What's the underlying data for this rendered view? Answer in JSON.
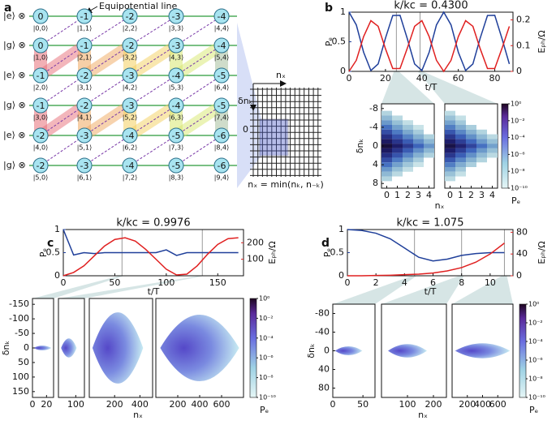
{
  "panel_labels": [
    "a",
    "b",
    "c",
    "d"
  ],
  "diagram": {
    "annotation": "Equipotential line",
    "row_labels": [
      "|e⟩ ⊗",
      "|g⟩ ⊗",
      "|e⟩ ⊗",
      "|g⟩ ⊗",
      "|e⟩ ⊗",
      "|g⟩ ⊗"
    ],
    "nodes": [
      [
        "0",
        "-1",
        "-2",
        "-3",
        "-4"
      ],
      [
        "0",
        "-1",
        "-2",
        "-3",
        "-4"
      ],
      [
        "-1",
        "-2",
        "-3",
        "-4",
        "-5"
      ],
      [
        "-1",
        "-2",
        "-3",
        "-4",
        "-5"
      ],
      [
        "-2",
        "-3",
        "-4",
        "-5",
        "-6"
      ],
      [
        "-2",
        "-3",
        "-4",
        "-5",
        "-6"
      ]
    ],
    "states": [
      [
        "|0,0⟩",
        "|1,1⟩",
        "|2,2⟩",
        "|3,3⟩",
        "|4,4⟩"
      ],
      [
        "|1,0⟩",
        "|2,1⟩",
        "|3,2⟩",
        "|4,3⟩",
        "|5,4⟩"
      ],
      [
        "|2,0⟩",
        "|3,1⟩",
        "|4,2⟩",
        "|5,3⟩",
        "|6,4⟩"
      ],
      [
        "|3,0⟩",
        "|4,1⟩",
        "|5,2⟩",
        "|6,3⟩",
        "|7,4⟩"
      ],
      [
        "|4,0⟩",
        "|5,1⟩",
        "|6,2⟩",
        "|7,3⟩",
        "|8,4⟩"
      ],
      [
        "|5,0⟩",
        "|6,1⟩",
        "|7,2⟩",
        "|8,3⟩",
        "|9,4⟩"
      ]
    ],
    "lattice": {
      "x_label": "nₓ",
      "y_label": "δnₖ",
      "origin": "0",
      "formula": "nₓ = min(nₖ, n₋ₖ)"
    }
  },
  "chart_data": [
    {
      "type": "line",
      "title": "k/kc = 0.4300",
      "xlabel": "t/T",
      "ylabel": "Pₑ",
      "y2label": "Eₚₕ/Ω",
      "x": [
        0,
        4,
        8,
        12,
        16,
        20,
        24,
        28,
        32,
        36,
        40,
        44,
        48,
        52,
        56,
        60,
        64,
        68,
        72,
        76,
        80,
        84,
        88
      ],
      "xlim": [
        0,
        90
      ],
      "xticks": [
        0,
        20,
        40,
        60,
        80
      ],
      "ylim": [
        0,
        1
      ],
      "yticks": [
        0,
        0.5,
        1
      ],
      "y2lim": [
        0,
        0.23
      ],
      "y2ticks": [
        0,
        0.1,
        0.2
      ],
      "series": [
        {
          "color": "#1f3f9a",
          "values": [
            1,
            0.785,
            0.324,
            0.014,
            0.126,
            0.561,
            0.943,
            0.947,
            0.551,
            0.125,
            0.014,
            0.323,
            0.785,
            1,
            0.785,
            0.324,
            0.014,
            0.126,
            0.561,
            0.943,
            0.947,
            0.551,
            0.125
          ]
        },
        {
          "color": "#e02020",
          "axis": "y2",
          "values": [
            0,
            0.043,
            0.135,
            0.197,
            0.175,
            0.088,
            0.011,
            0.011,
            0.09,
            0.175,
            0.197,
            0.135,
            0.043,
            0,
            0.043,
            0.135,
            0.197,
            0.175,
            0.088,
            0.011,
            0.011,
            0.09,
            0.175
          ]
        }
      ],
      "snapshots": [
        26,
        39
      ],
      "insets": [
        {
          "xlim": [
            -0.5,
            4.5
          ],
          "xticks": [
            0,
            1,
            2,
            3,
            4
          ]
        },
        {
          "xlim": [
            -0.5,
            4.5
          ],
          "xticks": [
            0,
            1,
            2,
            3,
            4
          ]
        }
      ],
      "inset_ylim": [
        -9,
        9
      ],
      "inset_yticks": [
        -8,
        -4,
        0,
        4,
        8
      ],
      "inset_xlabel": "nₓ",
      "inset_ylabel": "δnₖ",
      "colorbar": {
        "label": "Pₑ",
        "lim": [
          -10,
          0
        ],
        "ticks": [
          {
            "value": 0,
            "label": "10⁰"
          },
          {
            "value": -2,
            "label": "10⁻²"
          },
          {
            "value": -4,
            "label": "10⁻⁴"
          },
          {
            "value": -6,
            "label": "10⁻⁶"
          },
          {
            "value": -8,
            "label": "10⁻⁸"
          },
          {
            "value": -10,
            "label": "10⁻¹⁰"
          }
        ]
      }
    },
    {
      "type": "line",
      "title": "k/kc = 0.9976",
      "xlabel": "t/T",
      "ylabel": "Pₑ",
      "y2label": "Eₚₕ/Ω",
      "x": [
        0,
        10,
        20,
        30,
        40,
        50,
        60,
        70,
        80,
        90,
        100,
        110,
        120,
        130,
        140,
        150,
        160,
        170
      ],
      "xlim": [
        0,
        175
      ],
      "xticks": [
        0,
        50,
        100,
        150
      ],
      "ylim": [
        0,
        1
      ],
      "yticks": [
        0,
        0.5,
        1
      ],
      "y2lim": [
        0,
        280
      ],
      "y2ticks": [
        100,
        200
      ],
      "series": [
        {
          "color": "#1f3f9a",
          "values": [
            1,
            0.45,
            0.5,
            0.48,
            0.5,
            0.5,
            0.5,
            0.5,
            0.5,
            0.5,
            0.56,
            0.44,
            0.5,
            0.5,
            0.5,
            0.5,
            0.5,
            0.5
          ]
        },
        {
          "color": "#e02020",
          "axis": "y2",
          "values": [
            0,
            20,
            60,
            120,
            180,
            220,
            230,
            210,
            160,
            100,
            40,
            5,
            10,
            60,
            130,
            190,
            225,
            230
          ]
        }
      ],
      "snapshots": [
        57,
        135
      ],
      "insets": [
        {
          "xlim": [
            0,
            30
          ],
          "xticks": [
            0,
            20
          ]
        },
        {
          "xlim": [
            0,
            150
          ],
          "xticks": [
            100
          ]
        },
        {
          "xlim": [
            0,
            500
          ],
          "xticks": [
            200,
            400
          ]
        },
        {
          "xlim": [
            0,
            800
          ],
          "xticks": [
            200,
            400,
            600
          ]
        }
      ],
      "inset_ylim": [
        -170,
        170
      ],
      "inset_yticks": [
        -150,
        -100,
        -50,
        0,
        50,
        100,
        150
      ],
      "inset_xlabel": "nₓ",
      "inset_ylabel": "δnₖ",
      "colorbar": {
        "label": "Pₑ",
        "lim": [
          -10,
          0
        ],
        "ticks": [
          {
            "value": 0,
            "label": "10⁰"
          },
          {
            "value": -2,
            "label": "10⁻²"
          },
          {
            "value": -4,
            "label": "10⁻⁴"
          },
          {
            "value": -6,
            "label": "10⁻⁶"
          },
          {
            "value": -8,
            "label": "10⁻⁸"
          },
          {
            "value": -10,
            "label": "10⁻¹⁰"
          }
        ]
      }
    },
    {
      "type": "line",
      "title": "k/kc = 1.075",
      "xlabel": "t/T",
      "ylabel": "Pₑ",
      "y2label": "Eₚₕ/Ω",
      "x": [
        0,
        1,
        2,
        3,
        4,
        5,
        6,
        7,
        8,
        9,
        10,
        11
      ],
      "xlim": [
        0,
        11.6
      ],
      "xticks": [
        0,
        2,
        4,
        6,
        8,
        10
      ],
      "ylim": [
        0,
        1
      ],
      "yticks": [
        0,
        0.5,
        1
      ],
      "y2lim": [
        0,
        85
      ],
      "y2ticks": [
        0,
        40,
        80
      ],
      "series": [
        {
          "color": "#1f3f9a",
          "values": [
            1,
            0.98,
            0.92,
            0.8,
            0.6,
            0.4,
            0.32,
            0.36,
            0.44,
            0.48,
            0.5,
            0.5
          ]
        },
        {
          "color": "#e02020",
          "axis": "y2",
          "values": [
            0,
            0,
            0.5,
            1,
            2,
            3,
            5,
            9,
            15,
            25,
            40,
            60
          ]
        }
      ],
      "snapshots": [
        4.7,
        8,
        11
      ],
      "insets": [
        {
          "xlim": [
            0,
            70
          ],
          "xticks": [
            0,
            50
          ]
        },
        {
          "xlim": [
            0,
            250
          ],
          "xticks": [
            100,
            200
          ]
        },
        {
          "xlim": [
            0,
            800
          ],
          "xticks": [
            200,
            400,
            600
          ]
        }
      ],
      "inset_ylim": [
        -100,
        100
      ],
      "inset_yticks": [
        -80,
        -40,
        0,
        40,
        80
      ],
      "inset_xlabel": "nₓ",
      "inset_ylabel": "δnₖ",
      "colorbar": {
        "label": "Pₑ",
        "lim": [
          -10,
          0
        ],
        "ticks": [
          {
            "value": 0,
            "label": "10⁰"
          },
          {
            "value": -2,
            "label": "10⁻²"
          },
          {
            "value": -4,
            "label": "10⁻⁴"
          },
          {
            "value": -6,
            "label": "10⁻⁶"
          },
          {
            "value": -8,
            "label": "10⁻⁸"
          },
          {
            "value": -10,
            "label": "10⁻¹⁰"
          }
        ]
      }
    }
  ]
}
